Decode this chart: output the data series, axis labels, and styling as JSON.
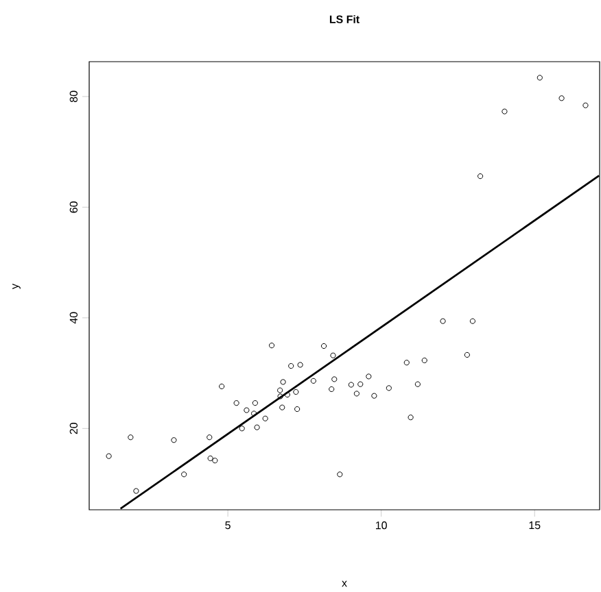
{
  "chart_data": {
    "type": "scatter",
    "title": "**LS Fit**",
    "xlabel": "x",
    "ylabel": "y",
    "xlim": [
      0.48,
      17.12
    ],
    "ylim": [
      5.3,
      86.3
    ],
    "xticks": [
      5,
      10,
      15
    ],
    "yticks": [
      20,
      40,
      60,
      80
    ],
    "grid": false,
    "series": [
      {
        "color": "#000000",
        "marker": "circle",
        "x": [
          1.12,
          1.83,
          2.01,
          3.24,
          3.57,
          4.4,
          4.43,
          4.58,
          4.8,
          5.28,
          5.46,
          5.61,
          5.89,
          5.85,
          5.95,
          6.22,
          6.43,
          6.7,
          6.71,
          6.8,
          6.77,
          6.94,
          7.06,
          7.22,
          7.36,
          7.26,
          7.79,
          8.13,
          8.43,
          8.47,
          8.38,
          8.65,
          9.02,
          9.2,
          9.32,
          9.59,
          9.77,
          10.25,
          10.83,
          10.96,
          11.19,
          11.41,
          12.01,
          12.8,
          12.98,
          13.23,
          14.02,
          15.17,
          15.88,
          16.66
        ],
        "values": [
          15.0,
          18.4,
          8.7,
          17.9,
          11.7,
          18.4,
          14.6,
          14.2,
          27.6,
          24.6,
          20.0,
          23.3,
          24.6,
          22.7,
          20.2,
          21.8,
          35.0,
          26.9,
          25.8,
          28.4,
          23.8,
          26.1,
          31.3,
          26.6,
          31.5,
          23.5,
          28.6,
          34.9,
          33.2,
          28.9,
          27.1,
          11.7,
          27.9,
          26.3,
          28.0,
          29.4,
          25.9,
          27.3,
          31.9,
          22.0,
          28.0,
          32.3,
          39.4,
          33.3,
          39.4,
          65.6,
          77.3,
          83.4,
          79.7,
          78.4
        ]
      },
      {
        "type": "line",
        "color": "#000000",
        "marker": "none",
        "line_style": "solid",
        "x": [
          1.5,
          17.1
        ],
        "values": [
          5.5,
          65.7
        ]
      }
    ]
  }
}
